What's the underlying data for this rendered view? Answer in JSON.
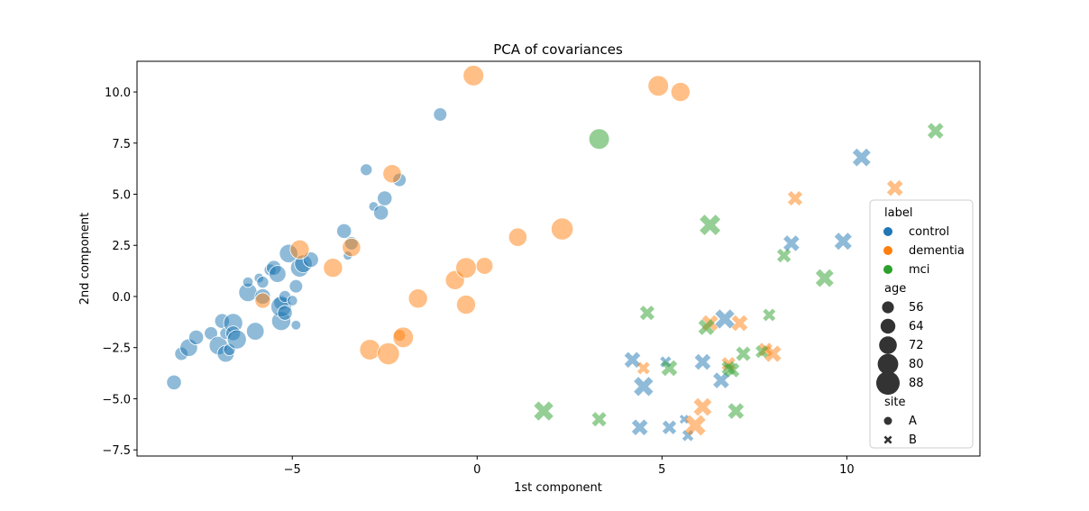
{
  "chart_data": {
    "type": "scatter",
    "title": "PCA of covariances",
    "xlabel": "1st component",
    "ylabel": "2nd component",
    "xlim": [
      -9.2,
      13.6
    ],
    "ylim": [
      -7.8,
      11.5
    ],
    "xticks": [
      -5,
      0,
      5,
      10
    ],
    "yticks": [
      -7.5,
      -5.0,
      -2.5,
      0.0,
      2.5,
      5.0,
      7.5,
      10.0
    ],
    "grid": false,
    "legend_position": "right",
    "colors": {
      "control": "#1f77b4",
      "dementia": "#ff7f0e",
      "mci": "#2ca02c"
    },
    "legend": {
      "hue_title": "label",
      "hue": [
        "control",
        "dementia",
        "mci"
      ],
      "size_title": "age",
      "sizes": [
        56,
        64,
        72,
        80,
        88
      ],
      "style_title": "site",
      "styles": [
        {
          "name": "A",
          "marker": "circle"
        },
        {
          "name": "B",
          "marker": "x"
        }
      ]
    },
    "points": [
      {
        "x": -8.2,
        "y": -4.2,
        "label": "control",
        "age": 64,
        "site": "A"
      },
      {
        "x": -8.0,
        "y": -2.8,
        "label": "control",
        "age": 60,
        "site": "A"
      },
      {
        "x": -7.8,
        "y": -2.5,
        "label": "control",
        "age": 72,
        "site": "A"
      },
      {
        "x": -7.6,
        "y": -2.0,
        "label": "control",
        "age": 64,
        "site": "A"
      },
      {
        "x": -7.2,
        "y": -1.8,
        "label": "control",
        "age": 60,
        "site": "A"
      },
      {
        "x": -7.0,
        "y": -2.4,
        "label": "control",
        "age": 74,
        "site": "A"
      },
      {
        "x": -6.9,
        "y": -1.2,
        "label": "control",
        "age": 64,
        "site": "A"
      },
      {
        "x": -6.8,
        "y": -2.8,
        "label": "control",
        "age": 70,
        "site": "A"
      },
      {
        "x": -6.8,
        "y": -1.8,
        "label": "control",
        "age": 56,
        "site": "A"
      },
      {
        "x": -6.7,
        "y": -2.6,
        "label": "control",
        "age": 56,
        "site": "A"
      },
      {
        "x": -6.6,
        "y": -1.3,
        "label": "control",
        "age": 76,
        "site": "A"
      },
      {
        "x": -6.6,
        "y": -1.8,
        "label": "control",
        "age": 64,
        "site": "A"
      },
      {
        "x": -6.5,
        "y": -2.1,
        "label": "control",
        "age": 76,
        "site": "A"
      },
      {
        "x": -6.2,
        "y": 0.2,
        "label": "control",
        "age": 74,
        "site": "A"
      },
      {
        "x": -6.2,
        "y": 0.7,
        "label": "control",
        "age": 52,
        "site": "A"
      },
      {
        "x": -6.0,
        "y": -1.7,
        "label": "control",
        "age": 72,
        "site": "A"
      },
      {
        "x": -5.9,
        "y": 0.9,
        "label": "control",
        "age": 50,
        "site": "A"
      },
      {
        "x": -5.8,
        "y": 0.0,
        "label": "control",
        "age": 66,
        "site": "A"
      },
      {
        "x": -5.8,
        "y": 0.7,
        "label": "control",
        "age": 56,
        "site": "A"
      },
      {
        "x": -5.6,
        "y": 1.3,
        "label": "control",
        "age": 56,
        "site": "A"
      },
      {
        "x": -5.5,
        "y": 1.4,
        "label": "control",
        "age": 64,
        "site": "A"
      },
      {
        "x": -5.4,
        "y": 1.1,
        "label": "control",
        "age": 70,
        "site": "A"
      },
      {
        "x": -5.3,
        "y": -0.3,
        "label": "control",
        "age": 64,
        "site": "A"
      },
      {
        "x": -5.3,
        "y": -1.2,
        "label": "control",
        "age": 76,
        "site": "A"
      },
      {
        "x": -5.3,
        "y": -0.5,
        "label": "control",
        "age": 80,
        "site": "A"
      },
      {
        "x": -5.2,
        "y": 0.0,
        "label": "control",
        "age": 56,
        "site": "A"
      },
      {
        "x": -5.2,
        "y": -0.8,
        "label": "control",
        "age": 64,
        "site": "A"
      },
      {
        "x": -5.1,
        "y": 2.1,
        "label": "control",
        "age": 74,
        "site": "A"
      },
      {
        "x": -5.0,
        "y": -0.2,
        "label": "control",
        "age": 52,
        "site": "A"
      },
      {
        "x": -4.9,
        "y": -1.4,
        "label": "control",
        "age": 50,
        "site": "A"
      },
      {
        "x": -4.9,
        "y": 0.5,
        "label": "control",
        "age": 60,
        "site": "A"
      },
      {
        "x": -4.8,
        "y": 1.4,
        "label": "control",
        "age": 74,
        "site": "A"
      },
      {
        "x": -4.7,
        "y": 1.6,
        "label": "control",
        "age": 72,
        "site": "A"
      },
      {
        "x": -4.5,
        "y": 1.8,
        "label": "control",
        "age": 66,
        "site": "A"
      },
      {
        "x": -3.6,
        "y": 3.2,
        "label": "control",
        "age": 64,
        "site": "A"
      },
      {
        "x": -3.5,
        "y": 2.0,
        "label": "control",
        "age": 48,
        "site": "A"
      },
      {
        "x": -3.4,
        "y": 2.6,
        "label": "control",
        "age": 60,
        "site": "A"
      },
      {
        "x": -3.0,
        "y": 6.2,
        "label": "control",
        "age": 56,
        "site": "A"
      },
      {
        "x": -2.8,
        "y": 4.4,
        "label": "control",
        "age": 50,
        "site": "A"
      },
      {
        "x": -2.6,
        "y": 4.1,
        "label": "control",
        "age": 64,
        "site": "A"
      },
      {
        "x": -2.5,
        "y": 4.8,
        "label": "control",
        "age": 64,
        "site": "A"
      },
      {
        "x": -2.1,
        "y": 5.7,
        "label": "control",
        "age": 60,
        "site": "A"
      },
      {
        "x": -1.0,
        "y": 8.9,
        "label": "control",
        "age": 60,
        "site": "A"
      },
      {
        "x": -5.8,
        "y": -0.2,
        "label": "dementia",
        "age": 66,
        "site": "A"
      },
      {
        "x": -4.8,
        "y": 2.3,
        "label": "dementia",
        "age": 76,
        "site": "A"
      },
      {
        "x": -3.9,
        "y": 1.4,
        "label": "dementia",
        "age": 76,
        "site": "A"
      },
      {
        "x": -3.4,
        "y": 2.4,
        "label": "dementia",
        "age": 74,
        "site": "A"
      },
      {
        "x": -2.9,
        "y": -2.6,
        "label": "dementia",
        "age": 80,
        "site": "A"
      },
      {
        "x": -2.4,
        "y": -2.8,
        "label": "dementia",
        "age": 84,
        "site": "A"
      },
      {
        "x": -2.3,
        "y": 6.0,
        "label": "dementia",
        "age": 74,
        "site": "A"
      },
      {
        "x": -2.1,
        "y": -1.9,
        "label": "dementia",
        "age": 56,
        "site": "A"
      },
      {
        "x": -2.0,
        "y": -2.0,
        "label": "dementia",
        "age": 80,
        "site": "A"
      },
      {
        "x": -1.6,
        "y": -0.1,
        "label": "dementia",
        "age": 76,
        "site": "A"
      },
      {
        "x": -0.6,
        "y": 0.8,
        "label": "dementia",
        "age": 76,
        "site": "A"
      },
      {
        "x": -0.3,
        "y": 1.4,
        "label": "dementia",
        "age": 80,
        "site": "A"
      },
      {
        "x": -0.3,
        "y": -0.4,
        "label": "dementia",
        "age": 76,
        "site": "A"
      },
      {
        "x": -0.1,
        "y": 10.8,
        "label": "dementia",
        "age": 80,
        "site": "A"
      },
      {
        "x": 0.2,
        "y": 1.5,
        "label": "dementia",
        "age": 70,
        "site": "A"
      },
      {
        "x": 1.1,
        "y": 2.9,
        "label": "dementia",
        "age": 74,
        "site": "A"
      },
      {
        "x": 2.3,
        "y": 3.3,
        "label": "dementia",
        "age": 84,
        "site": "A"
      },
      {
        "x": 4.9,
        "y": 10.3,
        "label": "dementia",
        "age": 80,
        "site": "A"
      },
      {
        "x": 5.5,
        "y": 10.0,
        "label": "dementia",
        "age": 76,
        "site": "A"
      },
      {
        "x": 3.3,
        "y": 7.7,
        "label": "mci",
        "age": 80,
        "site": "A"
      },
      {
        "x": 4.2,
        "y": -3.1,
        "label": "control",
        "age": 70,
        "site": "B"
      },
      {
        "x": 4.4,
        "y": -6.4,
        "label": "control",
        "age": 70,
        "site": "B"
      },
      {
        "x": 4.5,
        "y": -4.4,
        "label": "control",
        "age": 80,
        "site": "B"
      },
      {
        "x": 5.1,
        "y": -3.2,
        "label": "control",
        "age": 56,
        "site": "B"
      },
      {
        "x": 5.2,
        "y": -6.4,
        "label": "control",
        "age": 64,
        "site": "B"
      },
      {
        "x": 5.6,
        "y": -6.0,
        "label": "control",
        "age": 50,
        "site": "B"
      },
      {
        "x": 5.7,
        "y": -6.8,
        "label": "control",
        "age": 56,
        "site": "B"
      },
      {
        "x": 6.1,
        "y": -3.2,
        "label": "control",
        "age": 70,
        "site": "B"
      },
      {
        "x": 6.6,
        "y": -4.1,
        "label": "control",
        "age": 70,
        "site": "B"
      },
      {
        "x": 6.7,
        "y": -1.1,
        "label": "control",
        "age": 80,
        "site": "B"
      },
      {
        "x": 8.5,
        "y": 2.6,
        "label": "control",
        "age": 70,
        "site": "B"
      },
      {
        "x": 9.9,
        "y": 2.7,
        "label": "control",
        "age": 74,
        "site": "B"
      },
      {
        "x": 10.4,
        "y": 6.8,
        "label": "control",
        "age": 76,
        "site": "B"
      },
      {
        "x": 4.5,
        "y": -3.5,
        "label": "dementia",
        "age": 60,
        "site": "B"
      },
      {
        "x": 5.9,
        "y": -6.3,
        "label": "dementia",
        "age": 84,
        "site": "B"
      },
      {
        "x": 6.1,
        "y": -5.4,
        "label": "dementia",
        "age": 76,
        "site": "B"
      },
      {
        "x": 6.3,
        "y": -1.3,
        "label": "dementia",
        "age": 70,
        "site": "B"
      },
      {
        "x": 6.8,
        "y": -3.3,
        "label": "dementia",
        "age": 64,
        "site": "B"
      },
      {
        "x": 7.1,
        "y": -1.3,
        "label": "dementia",
        "age": 70,
        "site": "B"
      },
      {
        "x": 7.8,
        "y": -2.6,
        "label": "dementia",
        "age": 64,
        "site": "B"
      },
      {
        "x": 8.0,
        "y": -2.8,
        "label": "dementia",
        "age": 72,
        "site": "B"
      },
      {
        "x": 8.6,
        "y": 4.8,
        "label": "dementia",
        "age": 66,
        "site": "B"
      },
      {
        "x": 11.3,
        "y": 5.3,
        "label": "dementia",
        "age": 70,
        "site": "B"
      },
      {
        "x": 1.8,
        "y": -5.6,
        "label": "mci",
        "age": 80,
        "site": "B"
      },
      {
        "x": 3.3,
        "y": -6.0,
        "label": "mci",
        "age": 66,
        "site": "B"
      },
      {
        "x": 4.6,
        "y": -0.8,
        "label": "mci",
        "age": 66,
        "site": "B"
      },
      {
        "x": 5.2,
        "y": -3.5,
        "label": "mci",
        "age": 70,
        "site": "B"
      },
      {
        "x": 6.2,
        "y": -1.5,
        "label": "mci",
        "age": 70,
        "site": "B"
      },
      {
        "x": 6.3,
        "y": 3.5,
        "label": "mci",
        "age": 84,
        "site": "B"
      },
      {
        "x": 6.8,
        "y": -3.5,
        "label": "mci",
        "age": 64,
        "site": "B"
      },
      {
        "x": 6.9,
        "y": -3.6,
        "label": "mci",
        "age": 66,
        "site": "B"
      },
      {
        "x": 7.0,
        "y": -5.6,
        "label": "mci",
        "age": 70,
        "site": "B"
      },
      {
        "x": 7.2,
        "y": -2.8,
        "label": "mci",
        "age": 66,
        "site": "B"
      },
      {
        "x": 7.7,
        "y": -2.7,
        "label": "mci",
        "age": 60,
        "site": "B"
      },
      {
        "x": 7.9,
        "y": -0.9,
        "label": "mci",
        "age": 60,
        "site": "B"
      },
      {
        "x": 8.3,
        "y": 2.0,
        "label": "mci",
        "age": 64,
        "site": "B"
      },
      {
        "x": 9.4,
        "y": 0.9,
        "label": "mci",
        "age": 76,
        "site": "B"
      },
      {
        "x": 12.4,
        "y": 8.1,
        "label": "mci",
        "age": 70,
        "site": "B"
      }
    ]
  }
}
